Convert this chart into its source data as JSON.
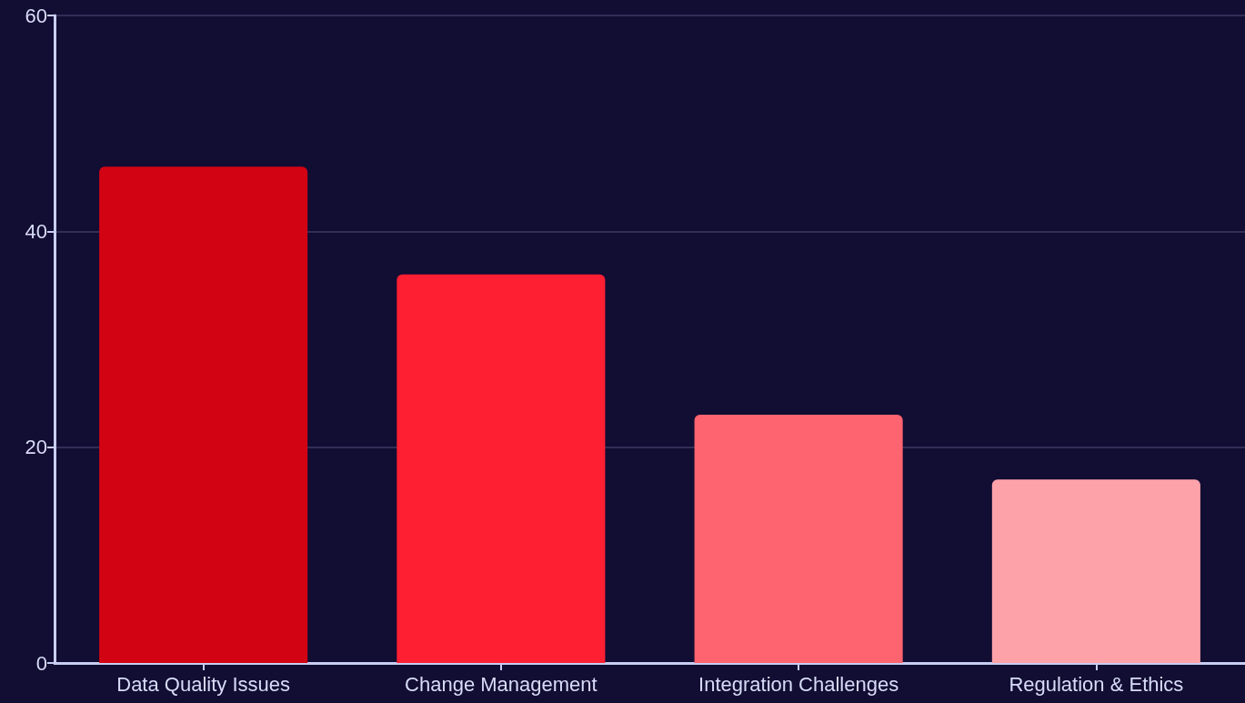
{
  "chart_data": {
    "type": "bar",
    "categories": [
      "Data Quality Issues",
      "Change Management",
      "Integration Challenges",
      "Regulation & Ethics"
    ],
    "values": [
      46,
      36,
      23,
      17
    ],
    "colors": [
      "#d20414",
      "#fe1f33",
      "#fe6370",
      "#fea2aa"
    ],
    "ylim": [
      0,
      60
    ],
    "yticks": [
      0,
      20,
      40,
      60
    ],
    "grid": "y"
  }
}
